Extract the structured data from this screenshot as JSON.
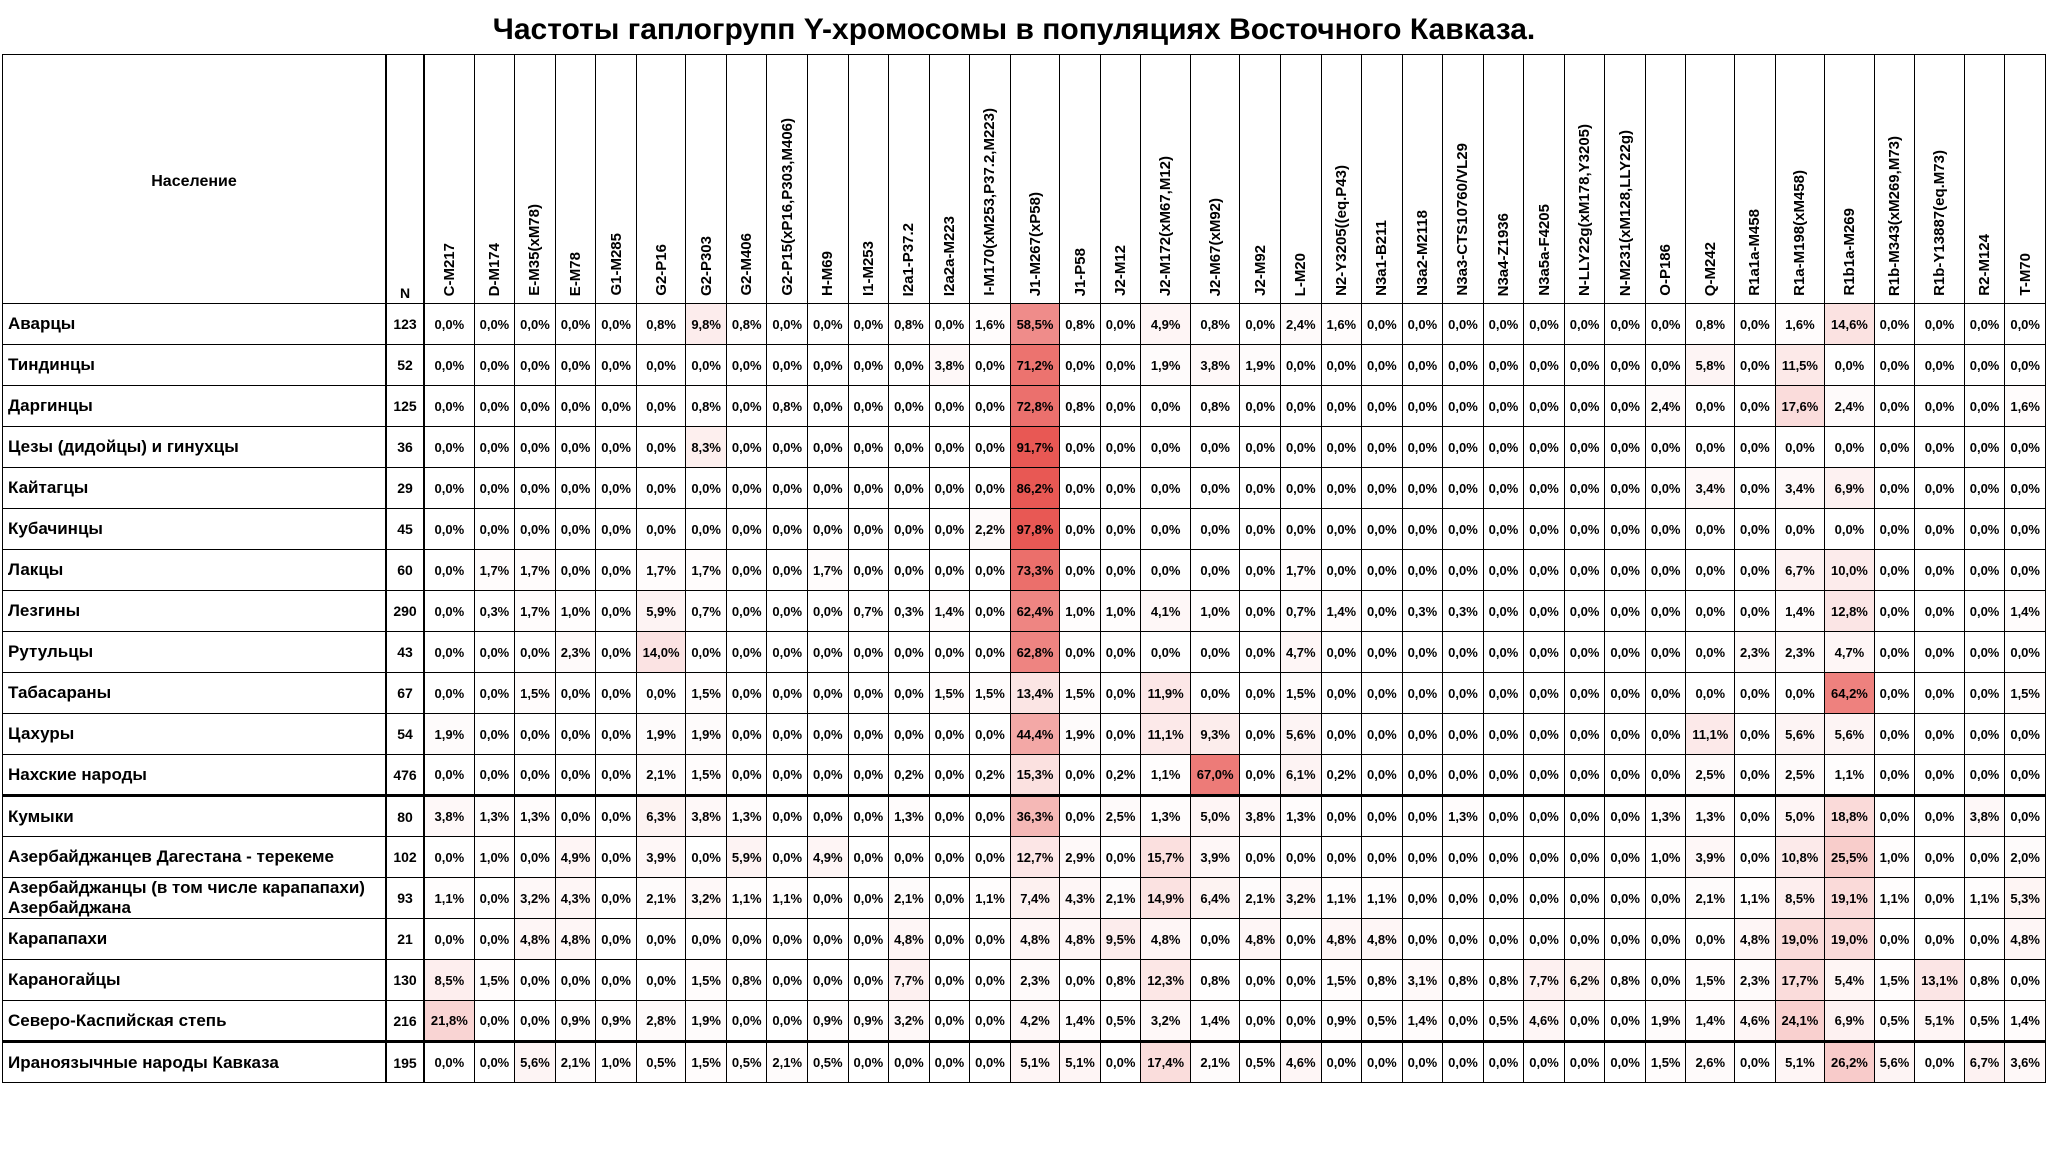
{
  "title": "Частоты гаплогрупп Y-хромосомы в популяциях Восточного Кавказа.",
  "header": {
    "population": "Население",
    "n": "N",
    "haplogroups": [
      "C-M217",
      "D-M174",
      "E-M35(xM78)",
      "E-M78",
      "G1-M285",
      "G2-P16",
      "G2-P303",
      "G2-M406",
      "G2-P15(xP16,P303,M406)",
      "H-M69",
      "I1-M253",
      "I2a1-P37.2",
      "I2a2a-M223",
      "I-M170(xM253,P37.2,M223)",
      "J1-M267(xP58)",
      "J1-P58",
      "J2-M12",
      "J2-M172(xM67,M12)",
      "J2-M67(xM92)",
      "J2-M92",
      "L-M20",
      "N2-Y3205((eq.P43)",
      "N3a1-B211",
      "N3a2-M2118",
      "N3a3-CTS10760/VL29",
      "N3a4-Z1936",
      "N3a5a-F4205",
      "N-LLY22g(xM178,Y3205)",
      "N-M231(xM128,LLY22g)",
      "O-P186",
      "Q-M242",
      "R1a1a-M458",
      "R1a-M198(xM458)",
      "R1b1a-M269",
      "R1b-M343(xM269,M73)",
      "R1b-Y13887(eq.M73)",
      "R2-M124",
      "T-M70"
    ]
  },
  "rows": [
    {
      "population": "Аварцы",
      "n": 123,
      "values": [
        "0,0%",
        "0,0%",
        "0,0%",
        "0,0%",
        "0,0%",
        "0,8%",
        "9,8%",
        "0,8%",
        "0,0%",
        "0,0%",
        "0,0%",
        "0,8%",
        "0,0%",
        "1,6%",
        "58,5%",
        "0,8%",
        "0,0%",
        "4,9%",
        "0,8%",
        "0,0%",
        "2,4%",
        "1,6%",
        "0,0%",
        "0,0%",
        "0,0%",
        "0,0%",
        "0,0%",
        "0,0%",
        "0,0%",
        "0,0%",
        "0,8%",
        "0,0%",
        "1,6%",
        "14,6%",
        "0,0%",
        "0,0%",
        "0,0%",
        "0,0%"
      ]
    },
    {
      "population": "Тиндинцы",
      "n": 52,
      "values": [
        "0,0%",
        "0,0%",
        "0,0%",
        "0,0%",
        "0,0%",
        "0,0%",
        "0,0%",
        "0,0%",
        "0,0%",
        "0,0%",
        "0,0%",
        "0,0%",
        "3,8%",
        "0,0%",
        "71,2%",
        "0,0%",
        "0,0%",
        "1,9%",
        "3,8%",
        "1,9%",
        "0,0%",
        "0,0%",
        "0,0%",
        "0,0%",
        "0,0%",
        "0,0%",
        "0,0%",
        "0,0%",
        "0,0%",
        "0,0%",
        "5,8%",
        "0,0%",
        "11,5%",
        "0,0%",
        "0,0%",
        "0,0%",
        "0,0%",
        "0,0%"
      ]
    },
    {
      "population": "Даргинцы",
      "n": 125,
      "values": [
        "0,0%",
        "0,0%",
        "0,0%",
        "0,0%",
        "0,0%",
        "0,0%",
        "0,8%",
        "0,0%",
        "0,8%",
        "0,0%",
        "0,0%",
        "0,0%",
        "0,0%",
        "0,0%",
        "72,8%",
        "0,8%",
        "0,0%",
        "0,0%",
        "0,8%",
        "0,0%",
        "0,0%",
        "0,0%",
        "0,0%",
        "0,0%",
        "0,0%",
        "0,0%",
        "0,0%",
        "0,0%",
        "0,0%",
        "2,4%",
        "0,0%",
        "0,0%",
        "17,6%",
        "2,4%",
        "0,0%",
        "0,0%",
        "0,0%",
        "1,6%"
      ]
    },
    {
      "population": "Цезы (дидойцы) и гинухцы",
      "n": 36,
      "values": [
        "0,0%",
        "0,0%",
        "0,0%",
        "0,0%",
        "0,0%",
        "0,0%",
        "8,3%",
        "0,0%",
        "0,0%",
        "0,0%",
        "0,0%",
        "0,0%",
        "0,0%",
        "0,0%",
        "91,7%",
        "0,0%",
        "0,0%",
        "0,0%",
        "0,0%",
        "0,0%",
        "0,0%",
        "0,0%",
        "0,0%",
        "0,0%",
        "0,0%",
        "0,0%",
        "0,0%",
        "0,0%",
        "0,0%",
        "0,0%",
        "0,0%",
        "0,0%",
        "0,0%",
        "0,0%",
        "0,0%",
        "0,0%",
        "0,0%",
        "0,0%"
      ]
    },
    {
      "population": "Кайтагцы",
      "n": 29,
      "values": [
        "0,0%",
        "0,0%",
        "0,0%",
        "0,0%",
        "0,0%",
        "0,0%",
        "0,0%",
        "0,0%",
        "0,0%",
        "0,0%",
        "0,0%",
        "0,0%",
        "0,0%",
        "0,0%",
        "86,2%",
        "0,0%",
        "0,0%",
        "0,0%",
        "0,0%",
        "0,0%",
        "0,0%",
        "0,0%",
        "0,0%",
        "0,0%",
        "0,0%",
        "0,0%",
        "0,0%",
        "0,0%",
        "0,0%",
        "0,0%",
        "3,4%",
        "0,0%",
        "3,4%",
        "6,9%",
        "0,0%",
        "0,0%",
        "0,0%",
        "0,0%"
      ]
    },
    {
      "population": "Кубачинцы",
      "n": 45,
      "values": [
        "0,0%",
        "0,0%",
        "0,0%",
        "0,0%",
        "0,0%",
        "0,0%",
        "0,0%",
        "0,0%",
        "0,0%",
        "0,0%",
        "0,0%",
        "0,0%",
        "0,0%",
        "2,2%",
        "97,8%",
        "0,0%",
        "0,0%",
        "0,0%",
        "0,0%",
        "0,0%",
        "0,0%",
        "0,0%",
        "0,0%",
        "0,0%",
        "0,0%",
        "0,0%",
        "0,0%",
        "0,0%",
        "0,0%",
        "0,0%",
        "0,0%",
        "0,0%",
        "0,0%",
        "0,0%",
        "0,0%",
        "0,0%",
        "0,0%",
        "0,0%"
      ]
    },
    {
      "population": "Лакцы",
      "n": 60,
      "values": [
        "0,0%",
        "1,7%",
        "1,7%",
        "0,0%",
        "0,0%",
        "1,7%",
        "1,7%",
        "0,0%",
        "0,0%",
        "1,7%",
        "0,0%",
        "0,0%",
        "0,0%",
        "0,0%",
        "73,3%",
        "0,0%",
        "0,0%",
        "0,0%",
        "0,0%",
        "0,0%",
        "1,7%",
        "0,0%",
        "0,0%",
        "0,0%",
        "0,0%",
        "0,0%",
        "0,0%",
        "0,0%",
        "0,0%",
        "0,0%",
        "0,0%",
        "0,0%",
        "6,7%",
        "10,0%",
        "0,0%",
        "0,0%",
        "0,0%",
        "0,0%"
      ]
    },
    {
      "population": "Лезгины",
      "n": 290,
      "values": [
        "0,0%",
        "0,3%",
        "1,7%",
        "1,0%",
        "0,0%",
        "5,9%",
        "0,7%",
        "0,0%",
        "0,0%",
        "0,0%",
        "0,7%",
        "0,3%",
        "1,4%",
        "0,0%",
        "62,4%",
        "1,0%",
        "1,0%",
        "4,1%",
        "1,0%",
        "0,0%",
        "0,7%",
        "1,4%",
        "0,0%",
        "0,3%",
        "0,3%",
        "0,0%",
        "0,0%",
        "0,0%",
        "0,0%",
        "0,0%",
        "0,0%",
        "0,0%",
        "1,4%",
        "12,8%",
        "0,0%",
        "0,0%",
        "0,0%",
        "1,4%"
      ]
    },
    {
      "population": "Рутульцы",
      "n": 43,
      "values": [
        "0,0%",
        "0,0%",
        "0,0%",
        "2,3%",
        "0,0%",
        "14,0%",
        "0,0%",
        "0,0%",
        "0,0%",
        "0,0%",
        "0,0%",
        "0,0%",
        "0,0%",
        "0,0%",
        "62,8%",
        "0,0%",
        "0,0%",
        "0,0%",
        "0,0%",
        "0,0%",
        "4,7%",
        "0,0%",
        "0,0%",
        "0,0%",
        "0,0%",
        "0,0%",
        "0,0%",
        "0,0%",
        "0,0%",
        "0,0%",
        "0,0%",
        "2,3%",
        "2,3%",
        "4,7%",
        "0,0%",
        "0,0%",
        "0,0%",
        "0,0%"
      ]
    },
    {
      "population": "Табасараны",
      "n": 67,
      "values": [
        "0,0%",
        "0,0%",
        "1,5%",
        "0,0%",
        "0,0%",
        "0,0%",
        "1,5%",
        "0,0%",
        "0,0%",
        "0,0%",
        "0,0%",
        "0,0%",
        "1,5%",
        "1,5%",
        "13,4%",
        "1,5%",
        "0,0%",
        "11,9%",
        "0,0%",
        "0,0%",
        "1,5%",
        "0,0%",
        "0,0%",
        "0,0%",
        "0,0%",
        "0,0%",
        "0,0%",
        "0,0%",
        "0,0%",
        "0,0%",
        "0,0%",
        "0,0%",
        "0,0%",
        "64,2%",
        "0,0%",
        "0,0%",
        "0,0%",
        "1,5%"
      ]
    },
    {
      "population": "Цахуры",
      "n": 54,
      "values": [
        "1,9%",
        "0,0%",
        "0,0%",
        "0,0%",
        "0,0%",
        "1,9%",
        "1,9%",
        "0,0%",
        "0,0%",
        "0,0%",
        "0,0%",
        "0,0%",
        "0,0%",
        "0,0%",
        "44,4%",
        "1,9%",
        "0,0%",
        "11,1%",
        "9,3%",
        "0,0%",
        "5,6%",
        "0,0%",
        "0,0%",
        "0,0%",
        "0,0%",
        "0,0%",
        "0,0%",
        "0,0%",
        "0,0%",
        "0,0%",
        "11,1%",
        "0,0%",
        "5,6%",
        "5,6%",
        "0,0%",
        "0,0%",
        "0,0%",
        "0,0%"
      ]
    },
    {
      "population": "Нахские народы",
      "n": 476,
      "values": [
        "0,0%",
        "0,0%",
        "0,0%",
        "0,0%",
        "0,0%",
        "2,1%",
        "1,5%",
        "0,0%",
        "0,0%",
        "0,0%",
        "0,0%",
        "0,2%",
        "0,0%",
        "0,2%",
        "15,3%",
        "0,0%",
        "0,2%",
        "1,1%",
        "67,0%",
        "0,0%",
        "6,1%",
        "0,2%",
        "0,0%",
        "0,0%",
        "0,0%",
        "0,0%",
        "0,0%",
        "0,0%",
        "0,0%",
        "0,0%",
        "2,5%",
        "0,0%",
        "2,5%",
        "1,1%",
        "0,0%",
        "0,0%",
        "0,0%",
        "0,0%"
      ]
    },
    {
      "population": "Кумыки",
      "n": 80,
      "values": [
        "3,8%",
        "1,3%",
        "1,3%",
        "0,0%",
        "0,0%",
        "6,3%",
        "3,8%",
        "1,3%",
        "0,0%",
        "0,0%",
        "0,0%",
        "1,3%",
        "0,0%",
        "0,0%",
        "36,3%",
        "0,0%",
        "2,5%",
        "1,3%",
        "5,0%",
        "3,8%",
        "1,3%",
        "0,0%",
        "0,0%",
        "0,0%",
        "1,3%",
        "0,0%",
        "0,0%",
        "0,0%",
        "0,0%",
        "1,3%",
        "1,3%",
        "0,0%",
        "5,0%",
        "18,8%",
        "0,0%",
        "0,0%",
        "3,8%",
        "0,0%"
      ]
    },
    {
      "population": "Азербайджанцев Дагестана - терекеме",
      "n": 102,
      "values": [
        "0,0%",
        "1,0%",
        "0,0%",
        "4,9%",
        "0,0%",
        "3,9%",
        "0,0%",
        "5,9%",
        "0,0%",
        "4,9%",
        "0,0%",
        "0,0%",
        "0,0%",
        "0,0%",
        "12,7%",
        "2,9%",
        "0,0%",
        "15,7%",
        "3,9%",
        "0,0%",
        "0,0%",
        "0,0%",
        "0,0%",
        "0,0%",
        "0,0%",
        "0,0%",
        "0,0%",
        "0,0%",
        "0,0%",
        "1,0%",
        "3,9%",
        "0,0%",
        "10,8%",
        "25,5%",
        "1,0%",
        "0,0%",
        "0,0%",
        "2,0%"
      ]
    },
    {
      "population": "Азербайджанцы (в том числе карапапахи) Азербайджана",
      "n": 93,
      "values": [
        "1,1%",
        "0,0%",
        "3,2%",
        "4,3%",
        "0,0%",
        "2,1%",
        "3,2%",
        "1,1%",
        "1,1%",
        "0,0%",
        "0,0%",
        "2,1%",
        "0,0%",
        "1,1%",
        "7,4%",
        "4,3%",
        "2,1%",
        "14,9%",
        "6,4%",
        "2,1%",
        "3,2%",
        "1,1%",
        "1,1%",
        "0,0%",
        "0,0%",
        "0,0%",
        "0,0%",
        "0,0%",
        "0,0%",
        "0,0%",
        "2,1%",
        "1,1%",
        "8,5%",
        "19,1%",
        "1,1%",
        "0,0%",
        "1,1%",
        "5,3%"
      ]
    },
    {
      "population": "Карапапахи",
      "n": 21,
      "values": [
        "0,0%",
        "0,0%",
        "4,8%",
        "4,8%",
        "0,0%",
        "0,0%",
        "0,0%",
        "0,0%",
        "0,0%",
        "0,0%",
        "0,0%",
        "4,8%",
        "0,0%",
        "0,0%",
        "4,8%",
        "4,8%",
        "9,5%",
        "4,8%",
        "0,0%",
        "4,8%",
        "0,0%",
        "4,8%",
        "4,8%",
        "0,0%",
        "0,0%",
        "0,0%",
        "0,0%",
        "0,0%",
        "0,0%",
        "0,0%",
        "0,0%",
        "4,8%",
        "19,0%",
        "19,0%",
        "0,0%",
        "0,0%",
        "0,0%",
        "4,8%"
      ]
    },
    {
      "population": "Караногайцы",
      "n": 130,
      "values": [
        "8,5%",
        "1,5%",
        "0,0%",
        "0,0%",
        "0,0%",
        "0,0%",
        "1,5%",
        "0,8%",
        "0,0%",
        "0,0%",
        "0,0%",
        "7,7%",
        "0,0%",
        "0,0%",
        "2,3%",
        "0,0%",
        "0,8%",
        "12,3%",
        "0,8%",
        "0,0%",
        "0,0%",
        "1,5%",
        "0,8%",
        "3,1%",
        "0,8%",
        "0,8%",
        "7,7%",
        "6,2%",
        "0,8%",
        "0,0%",
        "1,5%",
        "2,3%",
        "17,7%",
        "5,4%",
        "1,5%",
        "13,1%",
        "0,8%",
        "0,0%"
      ]
    },
    {
      "population": "Северо-Каспийская степь",
      "n": 216,
      "values": [
        "21,8%",
        "0,0%",
        "0,0%",
        "0,9%",
        "0,9%",
        "2,8%",
        "1,9%",
        "0,0%",
        "0,0%",
        "0,9%",
        "0,9%",
        "3,2%",
        "0,0%",
        "0,0%",
        "4,2%",
        "1,4%",
        "0,5%",
        "3,2%",
        "1,4%",
        "0,0%",
        "0,0%",
        "0,9%",
        "0,5%",
        "1,4%",
        "0,0%",
        "0,5%",
        "4,6%",
        "0,0%",
        "0,0%",
        "1,9%",
        "1,4%",
        "4,6%",
        "24,1%",
        "6,9%",
        "0,5%",
        "5,1%",
        "0,5%",
        "1,4%"
      ]
    },
    {
      "population": "Ираноязычные народы Кавказа",
      "n": 195,
      "values": [
        "0,0%",
        "0,0%",
        "5,6%",
        "2,1%",
        "1,0%",
        "0,5%",
        "1,5%",
        "0,5%",
        "2,1%",
        "0,5%",
        "0,0%",
        "0,0%",
        "0,0%",
        "0,0%",
        "5,1%",
        "5,1%",
        "0,0%",
        "17,4%",
        "2,1%",
        "0,5%",
        "4,6%",
        "0,0%",
        "0,0%",
        "0,0%",
        "0,0%",
        "0,0%",
        "0,0%",
        "0,0%",
        "0,0%",
        "1,5%",
        "2,6%",
        "0,0%",
        "5,1%",
        "26,2%",
        "5,6%",
        "0,0%",
        "6,7%",
        "3,6%"
      ]
    }
  ]
}
